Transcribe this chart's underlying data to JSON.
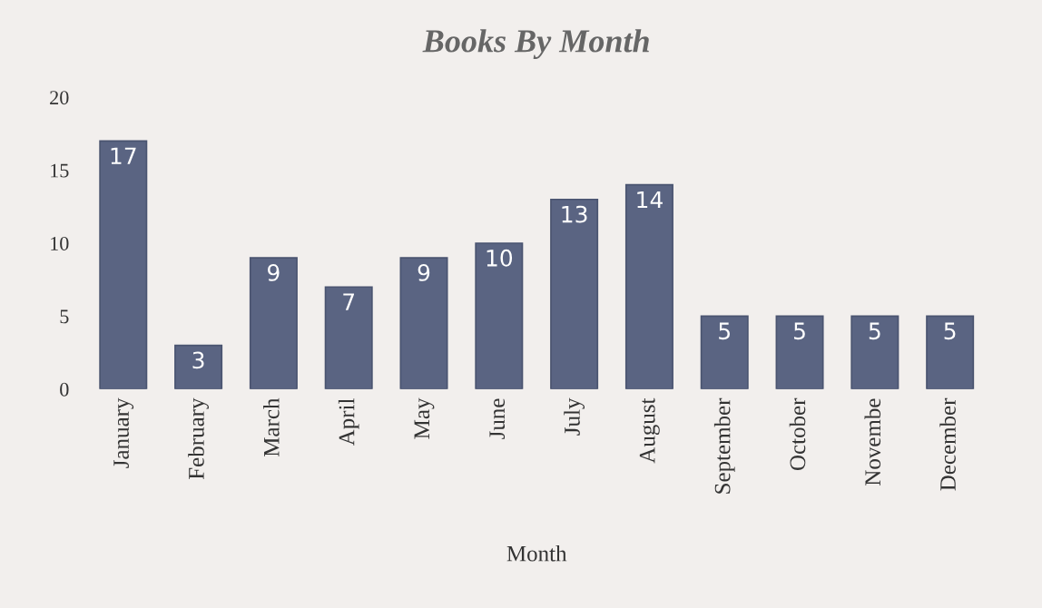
{
  "chart_data": {
    "type": "bar",
    "title": "Books By Month",
    "xlabel": "Month",
    "categories": [
      "January",
      "February",
      "March",
      "April",
      "May",
      "June",
      "July",
      "August",
      "September",
      "October",
      "Novembe",
      "December"
    ],
    "values": [
      17,
      3,
      9,
      7,
      9,
      10,
      13,
      14,
      5,
      5,
      5,
      5
    ],
    "color": "#5a6482",
    "ylim": [
      0,
      20
    ],
    "yticks": [
      0,
      5,
      10,
      15,
      20
    ],
    "grid": false,
    "data_labels": true
  }
}
